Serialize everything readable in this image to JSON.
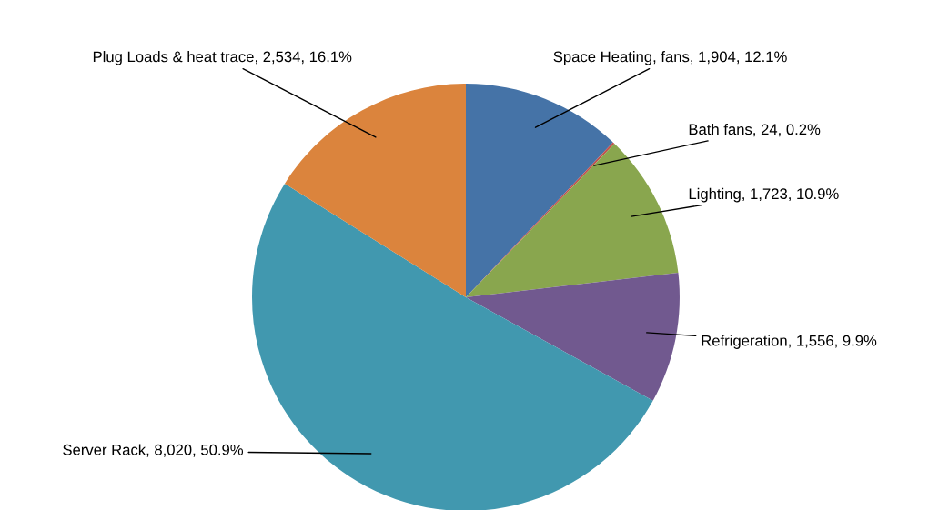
{
  "chart_data": {
    "type": "pie",
    "categories": [
      "Space Heating, fans",
      "Bath fans",
      "Lighting",
      "Refrigeration",
      "Server Rack",
      "Plug Loads & heat trace"
    ],
    "values": [
      1904,
      24,
      1723,
      1556,
      8020,
      2534
    ],
    "value_labels": [
      "1,904, 12.1%",
      "24, 0.2%",
      "1,723, 10.9%",
      "1,556, 9.9%",
      "8,020, 50.9%",
      "2,534, 16.1%"
    ],
    "colors": [
      "#4573a7",
      "#c0504d",
      "#89a64e",
      "#71598f",
      "#4198af",
      "#db843d"
    ],
    "legend": false
  }
}
